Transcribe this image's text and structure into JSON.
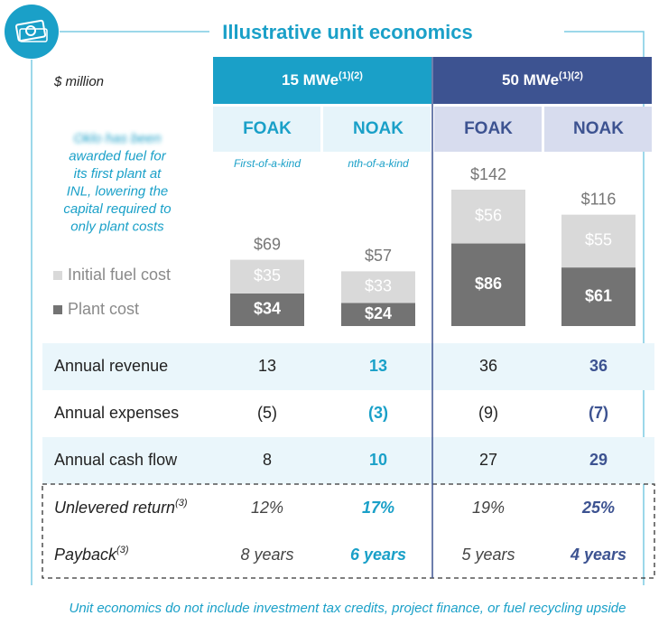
{
  "title": "Illustrative unit economics",
  "unit_note": "$ million",
  "note_lines": [
    "Oklo has been",
    "awarded fuel for",
    "its first plant at",
    "INL, lowering the",
    "capital required to",
    "only plant costs"
  ],
  "groups": [
    {
      "label": "15 MWe",
      "sup": "(1)(2)",
      "color": "#1aa0c8",
      "light": "#e6f4fa"
    },
    {
      "label": "50 MWe",
      "sup": "(1)(2)",
      "color": "#3d5391",
      "light": "#d7dcee"
    }
  ],
  "chart_data": {
    "type": "stacked-bar",
    "categories": [
      "FOAK",
      "NOAK",
      "FOAK",
      "NOAK"
    ],
    "category_notes": [
      "First-of-a-kind",
      "nth-of-a-kind"
    ],
    "series": [
      {
        "name": "Plant cost",
        "color": "#737373",
        "values": [
          34,
          24,
          86,
          61
        ],
        "value_labels": [
          "$34",
          "$24",
          "$86",
          "$61"
        ]
      },
      {
        "name": "Initial fuel cost",
        "color": "#d9d9d9",
        "values": [
          35,
          33,
          56,
          55
        ],
        "value_labels": [
          "$35",
          "$33",
          "$56",
          "$55"
        ]
      }
    ],
    "total_labels": [
      "$69",
      "$57",
      "$142",
      "$116"
    ]
  },
  "table": {
    "rows": [
      {
        "label": "Annual revenue",
        "values": [
          "13",
          "13",
          "36",
          "36"
        ]
      },
      {
        "label": "Annual expenses",
        "values": [
          "(5)",
          "(3)",
          "(9)",
          "(7)"
        ]
      },
      {
        "label": "Annual cash flow",
        "values": [
          "8",
          "10",
          "27",
          "29"
        ]
      },
      {
        "label": "Unlevered return",
        "sup": "(3)",
        "values": [
          "12%",
          "17%",
          "19%",
          "25%"
        ]
      },
      {
        "label": "Payback",
        "sup": "(3)",
        "values": [
          "8 years",
          "6 years",
          "5 years",
          "4 years"
        ]
      }
    ]
  },
  "footer": "Unit economics do not include investment tax credits, project finance, or fuel recycling upside"
}
